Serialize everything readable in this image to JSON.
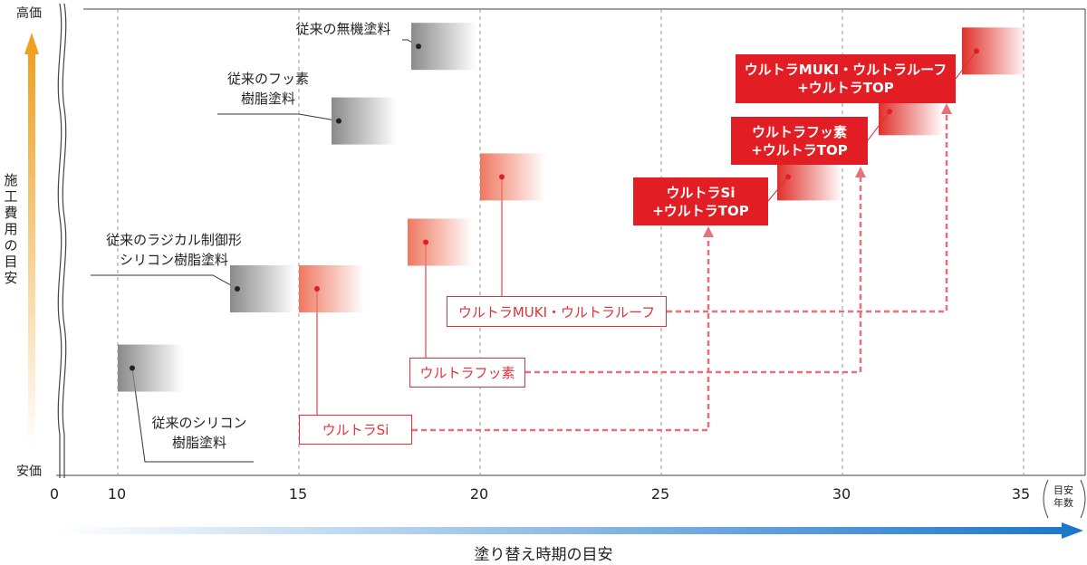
{
  "chart_data": {
    "type": "range-bar",
    "xlabel": "塗り替え時期の目安",
    "xunit": [
      "目安",
      "年数"
    ],
    "xticks": [
      "0",
      "10",
      "15",
      "20",
      "25",
      "30",
      "35"
    ],
    "ylabel": "施工費用の目安",
    "ytop": "高価",
    "ybottom": "安価",
    "series": [
      {
        "name": "従来のシリコン\n樹脂塗料",
        "color": "#888888",
        "x_start": 10,
        "x_end": 11.8,
        "level": 0.23,
        "marker": 10.4
      },
      {
        "name": "従来のラジカル制御形\nシリコン樹脂塗料",
        "color": "#888888",
        "x_start": 13.1,
        "x_end": 14.9,
        "level": 0.4,
        "marker": 13.3
      },
      {
        "name": "従来のフッ素\n樹脂塗料",
        "color": "#888888",
        "x_start": 15.9,
        "x_end": 17.7,
        "level": 0.76,
        "marker": 16.1
      },
      {
        "name": "従来の無機塗料",
        "color": "#888888",
        "x_start": 18.1,
        "x_end": 19.9,
        "level": 0.92,
        "marker": 18.3
      },
      {
        "name": "ウルトラSi",
        "color": "#ee7860",
        "x_start": 15,
        "x_end": 16.8,
        "level": 0.4,
        "marker": 15.5
      },
      {
        "name": "ウルトラフッ素",
        "color": "#ee7860",
        "x_start": 18,
        "x_end": 19.8,
        "level": 0.5,
        "marker": 18.5
      },
      {
        "name": "ウルトラMUKI・ウルトラルーフ",
        "color": "#ee7860",
        "x_start": 20,
        "x_end": 21.8,
        "level": 0.64,
        "marker": 20.6
      },
      {
        "name": "ウルトラSi\n+ウルトラTOP",
        "color": "#e0302a",
        "x_start": 28.2,
        "x_end": 30,
        "level": 0.64,
        "marker": 28.5
      },
      {
        "name": "ウルトラフッ素\n+ウルトラTOP",
        "color": "#e0302a",
        "x_start": 31,
        "x_end": 32.8,
        "level": 0.78,
        "marker": 31.3
      },
      {
        "name": "ウルトラMUKI・ウルトラルーフ\n+ウルトラTOP",
        "color": "#e0302a",
        "x_start": 33.3,
        "x_end": 35.1,
        "level": 0.91,
        "marker": 33.7
      }
    ]
  },
  "labels": {
    "conv_si": [
      "従来のシリコン",
      "樹脂塗料"
    ],
    "conv_radical": [
      "従来のラジカル制御形",
      "シリコン樹脂塗料"
    ],
    "conv_fluoro": [
      "従来のフッ素",
      "樹脂塗料"
    ],
    "conv_inorganic": "従来の無機塗料",
    "ultra_si": "ウルトラSi",
    "ultra_fluoro": "ウルトラフッ素",
    "ultra_muki": "ウルトラMUKI・ウルトラルーフ",
    "top_si": [
      "ウルトラSi",
      "+ウルトラTOP"
    ],
    "top_fluoro": [
      "ウルトラフッ素",
      "+ウルトラTOP"
    ],
    "top_muki": [
      "ウルトラMUKI・ウルトラルーフ",
      "+ウルトラTOP"
    ]
  },
  "colors": {
    "red": "#e21d24",
    "gray": "#8a8a8a",
    "salmon": "#ee7860",
    "arrow_blue": "#1e78c8",
    "arrow_orange": "#f0a020",
    "dashed_pink": "#e8707a"
  }
}
